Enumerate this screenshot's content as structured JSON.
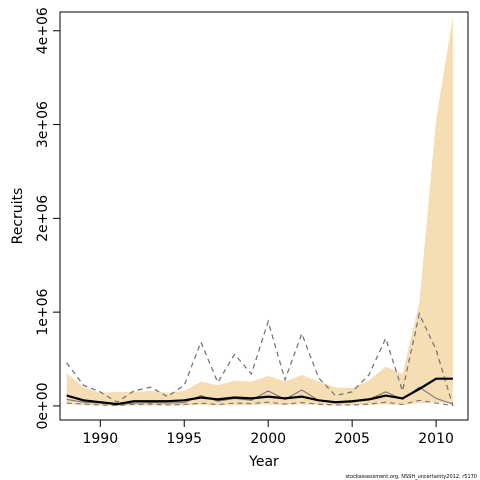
{
  "chart_data": {
    "type": "line",
    "xlabel": "Year",
    "ylabel": "Recruits",
    "xlim": [
      1987.6,
      2011.9
    ],
    "ylim": [
      -150000,
      4200000
    ],
    "x_ticks": [
      1990,
      1995,
      2000,
      2005,
      2010
    ],
    "x_tick_labels": [
      "1990",
      "1995",
      "2000",
      "2005",
      "2010"
    ],
    "y_ticks": [
      0,
      1000000,
      2000000,
      3000000,
      4000000
    ],
    "y_tick_labels": [
      "0e+00",
      "1e+06",
      "2e+06",
      "3e+06",
      "4e+06"
    ],
    "footnote": "stockassessment.org, NSSH_uncertainty2012, r5170",
    "colors": {
      "band": "#f5deb3",
      "median": "#000000",
      "dashed": "#777777",
      "thin": "#777777",
      "axis": "#000000"
    },
    "x": [
      1988,
      1989,
      1990,
      1991,
      1992,
      1993,
      1994,
      1995,
      1996,
      1997,
      1998,
      1999,
      2000,
      2001,
      2002,
      2003,
      2004,
      2005,
      2006,
      2007,
      2008,
      2009,
      2010,
      2011
    ],
    "band_upper": [
      350000,
      200000,
      140000,
      150000,
      150000,
      160000,
      140000,
      160000,
      260000,
      220000,
      270000,
      260000,
      320000,
      260000,
      330000,
      260000,
      200000,
      190000,
      270000,
      420000,
      340000,
      1100000,
      3050000,
      4150000
    ],
    "band_lower": [
      20000,
      10000,
      5000,
      0,
      5000,
      5000,
      5000,
      5000,
      10000,
      5000,
      10000,
      10000,
      15000,
      10000,
      15000,
      10000,
      5000,
      5000,
      10000,
      15000,
      10000,
      30000,
      40000,
      30000
    ],
    "series": [
      {
        "name": "",
        "style": "solid-thick",
        "values": [
          110000,
          60000,
          40000,
          20000,
          50000,
          50000,
          50000,
          60000,
          90000,
          70000,
          90000,
          80000,
          100000,
          80000,
          100000,
          60000,
          40000,
          50000,
          70000,
          110000,
          80000,
          180000,
          290000,
          290000
        ]
      },
      {
        "name": "",
        "style": "dashed",
        "values": [
          460000,
          220000,
          150000,
          40000,
          160000,
          200000,
          100000,
          220000,
          680000,
          250000,
          550000,
          340000,
          900000,
          280000,
          770000,
          300000,
          110000,
          150000,
          330000,
          720000,
          160000,
          980000,
          600000,
          0
        ]
      },
      {
        "name": "",
        "style": "solid-thin",
        "values": [
          70000,
          40000,
          30000,
          15000,
          30000,
          35000,
          30000,
          35000,
          110000,
          50000,
          80000,
          60000,
          160000,
          70000,
          170000,
          60000,
          30000,
          40000,
          70000,
          150000,
          70000,
          200000,
          80000,
          20000
        ]
      },
      {
        "name": "",
        "style": "dashed-low",
        "values": [
          30000,
          20000,
          10000,
          5000,
          15000,
          20000,
          10000,
          15000,
          30000,
          15000,
          30000,
          25000,
          40000,
          20000,
          35000,
          20000,
          10000,
          10000,
          20000,
          40000,
          15000,
          60000,
          30000,
          5000
        ]
      }
    ]
  }
}
